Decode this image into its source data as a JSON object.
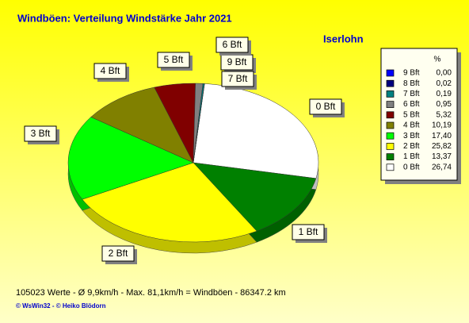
{
  "chart_data": {
    "type": "pie",
    "title": "Windböen: Verteilung Windstärke  Jahr 2021",
    "subtitle": "Iserlohn",
    "legend_title": "%",
    "categories": [
      "9 Bft",
      "8 Bft",
      "7 Bft",
      "6 Bft",
      "5 Bft",
      "4 Bft",
      "3 Bft",
      "2 Bft",
      "1 Bft",
      "0 Bft"
    ],
    "values": [
      0.0,
      0.02,
      0.19,
      0.95,
      5.32,
      10.19,
      17.4,
      25.82,
      13.37,
      26.74
    ],
    "value_labels": [
      "0,00",
      "0,02",
      "0,19",
      "0,95",
      "5,32",
      "10,19",
      "17,40",
      "25,82",
      "13,37",
      "26,74"
    ],
    "colors": [
      "#0000ff",
      "#000080",
      "#008080",
      "#808080",
      "#800000",
      "#808000",
      "#00ff00",
      "#ffff00",
      "#008000",
      "#ffffff"
    ],
    "footer": "105023 Werte    -    Ø 9,9km/h   -   Max. 81,1km/h = Windböen    -     86347.2 km",
    "credits": "© WsWin32   -   © Heiko Blödorn"
  }
}
